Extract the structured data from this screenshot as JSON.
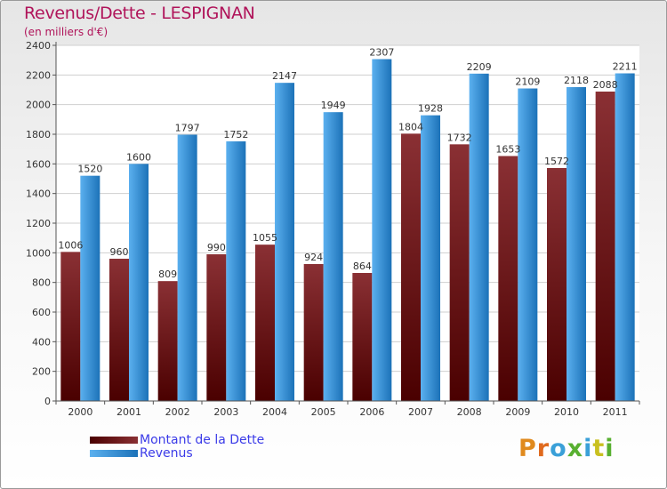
{
  "title": "Revenus/Dette - LESPIGNAN",
  "subtitle": "(en milliers d'€)",
  "brand": "Proxiti",
  "colors": {
    "dette_light": "#8a3034",
    "dette_dark": "#4a0000",
    "revenus_light": "#5bb0ef",
    "revenus_dark": "#1c72b8",
    "axis_text": "#333333",
    "title": "#b0145a",
    "legend_text": "#3b3be8"
  },
  "chart_data": {
    "type": "bar",
    "categories": [
      "2000",
      "2001",
      "2002",
      "2003",
      "2004",
      "2005",
      "2006",
      "2007",
      "2008",
      "2009",
      "2010",
      "2011"
    ],
    "series": [
      {
        "name": "Montant de la Dette",
        "values": [
          1006,
          960,
          809,
          990,
          1055,
          924,
          864,
          1804,
          1732,
          1653,
          1572,
          2088
        ]
      },
      {
        "name": "Revenus",
        "values": [
          1520,
          1600,
          1797,
          1752,
          2147,
          1949,
          2307,
          1928,
          2209,
          2109,
          2118,
          2211
        ]
      }
    ],
    "title": "Revenus/Dette - LESPIGNAN",
    "ylabel": "(en milliers d'€)",
    "ylim": [
      0,
      2400
    ],
    "yticks": [
      0,
      200,
      400,
      600,
      800,
      1000,
      1200,
      1400,
      1600,
      1800,
      2000,
      2200,
      2400
    ],
    "grid": true,
    "legend": "bottom-left"
  }
}
